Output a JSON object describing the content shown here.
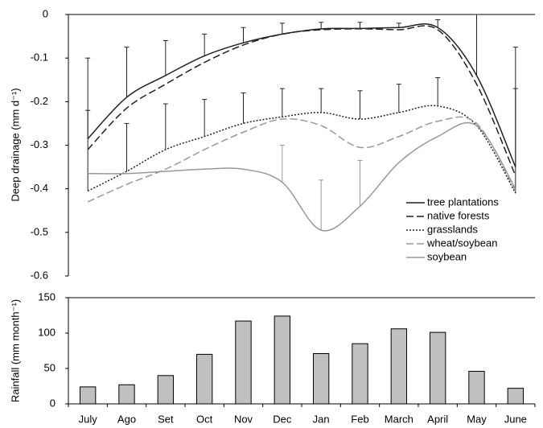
{
  "chart_data": [
    {
      "type": "line",
      "ylabel": "Deep drainage (mm d⁻¹)",
      "ylim": [
        -0.6,
        0
      ],
      "yticks": [
        0,
        -0.1,
        -0.2,
        -0.3,
        -0.4,
        -0.5,
        -0.6
      ],
      "series": [
        {
          "name": "tree plantations",
          "color": "#222222",
          "dash": "solid",
          "values": [
            -0.285,
            -0.19,
            -0.14,
            -0.095,
            -0.065,
            -0.045,
            -0.033,
            -0.032,
            -0.03,
            -0.03,
            -0.14,
            -0.35
          ],
          "errors": [
            0.185,
            0.115,
            0.08,
            0.05,
            0.035,
            0.025,
            0.015,
            0.014,
            0.01,
            0.018,
            0.14,
            0.275
          ]
        },
        {
          "name": "native forests",
          "color": "#222222",
          "dash": "long",
          "values": [
            -0.31,
            -0.215,
            -0.16,
            -0.11,
            -0.07,
            -0.045,
            -0.035,
            -0.033,
            -0.035,
            -0.035,
            -0.16,
            -0.37
          ]
        },
        {
          "name": "grasslands",
          "color": "#222222",
          "dash": "dot",
          "values": [
            -0.405,
            -0.36,
            -0.31,
            -0.28,
            -0.25,
            -0.235,
            -0.225,
            -0.24,
            -0.225,
            -0.21,
            -0.255,
            -0.41
          ],
          "errors": [
            0.185,
            0.11,
            0.105,
            0.085,
            0.07,
            0.065,
            0.055,
            0.065,
            0.065,
            0.065,
            null,
            0.24
          ]
        },
        {
          "name": "wheat/soybean",
          "color": "#999999",
          "dash": "long",
          "values": [
            -0.43,
            -0.39,
            -0.355,
            -0.31,
            -0.27,
            -0.24,
            -0.255,
            -0.305,
            -0.28,
            -0.245,
            -0.25,
            -0.405
          ]
        },
        {
          "name": "soybean",
          "color": "#999999",
          "dash": "solid",
          "values": [
            -0.365,
            -0.365,
            -0.36,
            -0.355,
            -0.355,
            -0.385,
            -0.495,
            -0.44,
            -0.34,
            -0.28,
            -0.255,
            -0.4
          ],
          "errors": [
            null,
            null,
            null,
            null,
            null,
            0.085,
            0.115,
            0.105,
            null,
            null,
            null,
            null
          ]
        }
      ]
    },
    {
      "type": "bar",
      "ylabel": "Rainfall (mm month⁻¹)",
      "categories": [
        "July",
        "Ago",
        "Set",
        "Oct",
        "Nov",
        "Dec",
        "Jan",
        "Feb",
        "March",
        "April",
        "May",
        "June"
      ],
      "values": [
        24,
        27,
        40,
        70,
        117,
        124,
        71,
        85,
        106,
        101,
        46,
        22
      ],
      "color": "#c0c0c0",
      "ylim": [
        0,
        150
      ],
      "yticks": [
        0,
        50,
        100,
        150
      ]
    }
  ]
}
